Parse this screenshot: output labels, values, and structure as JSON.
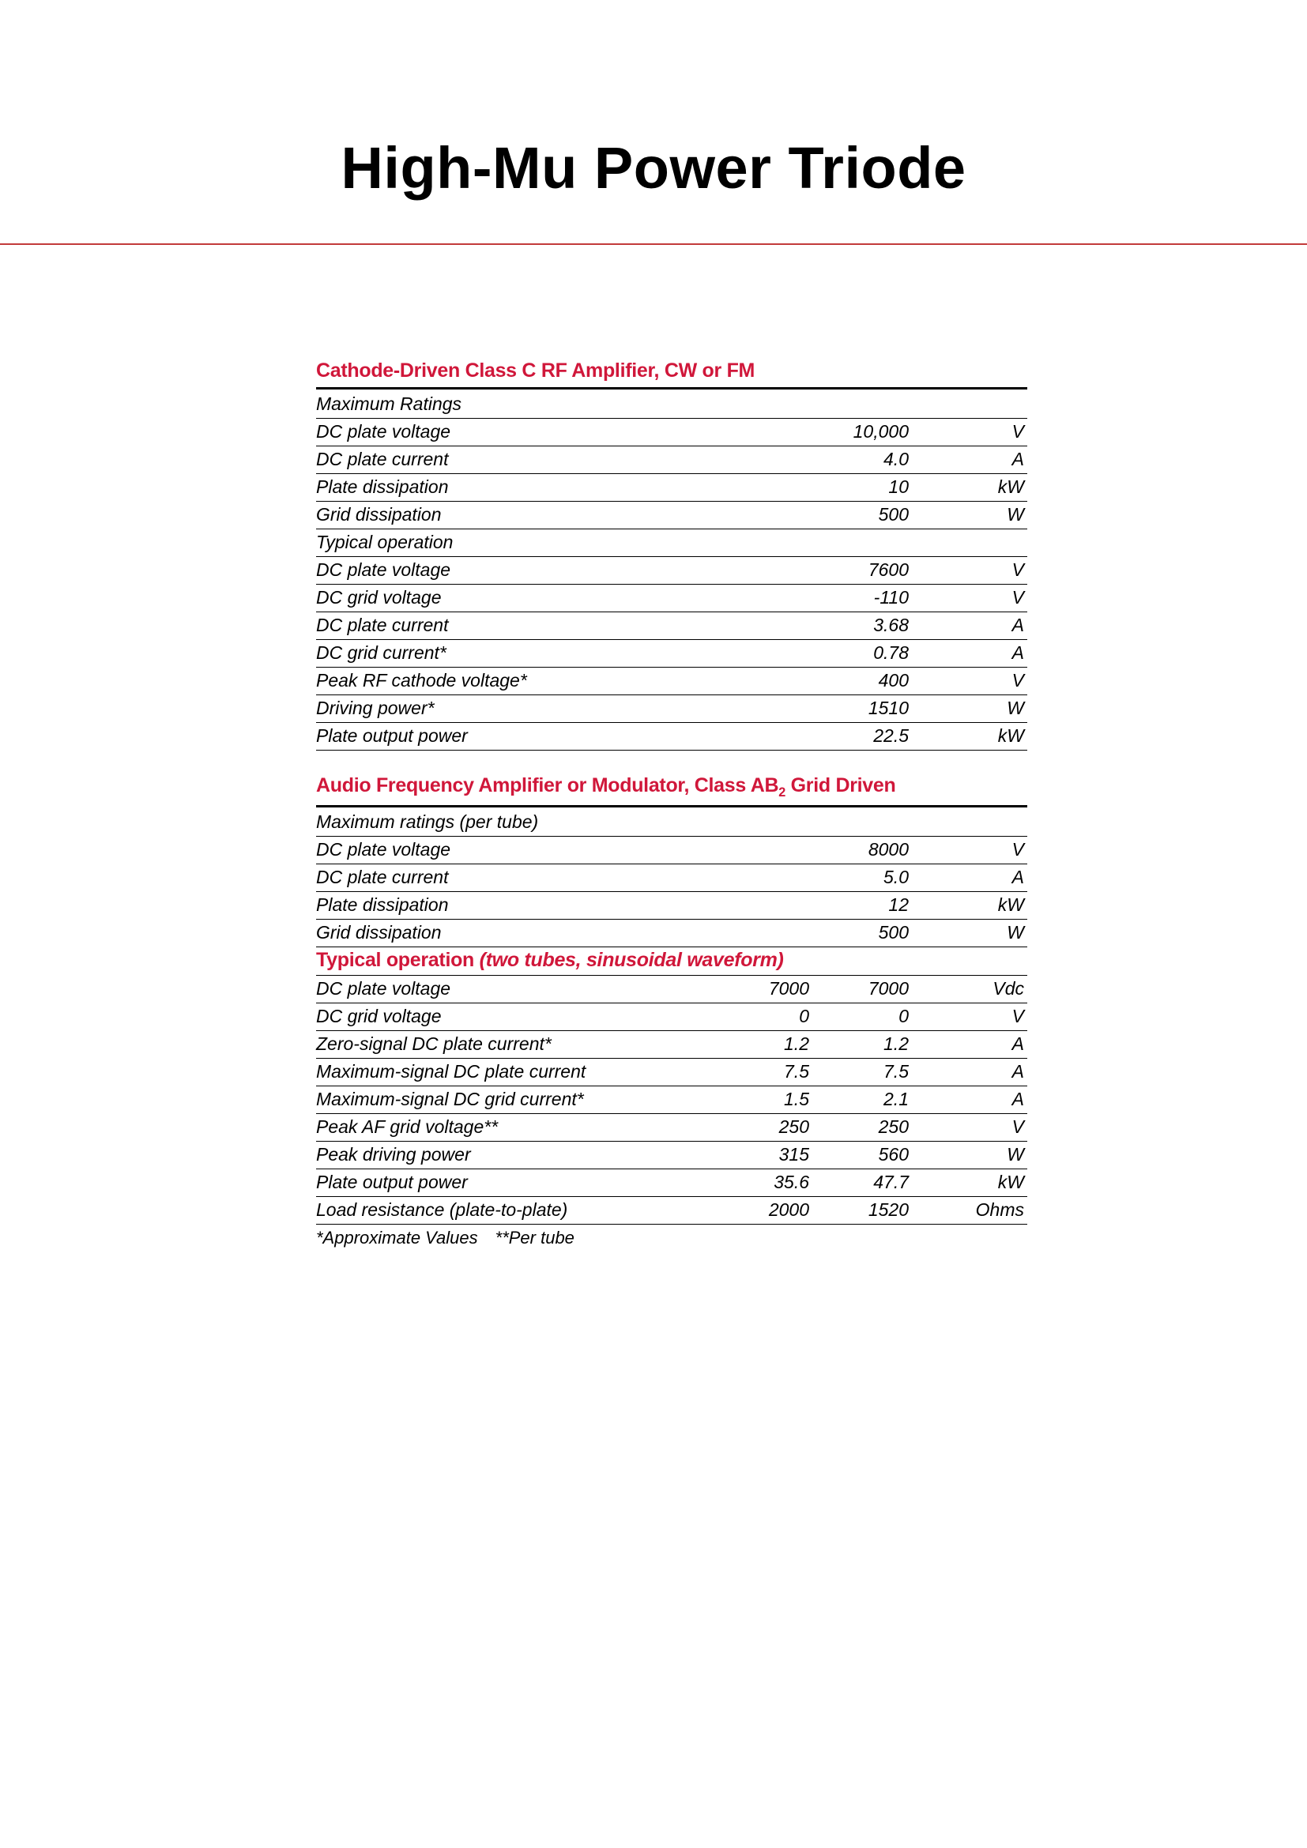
{
  "page": {
    "title": "High-Mu Power Triode",
    "accent_color": "#d0173a",
    "rule_color": "#c23a3a",
    "text_color": "#000000",
    "background_color": "#ffffff"
  },
  "section1": {
    "heading": "Cathode-Driven Class C RF Amplifier, CW or FM",
    "groups": [
      {
        "header": "Maximum Ratings",
        "rows": [
          {
            "label": "DC plate voltage",
            "value": "10,000",
            "unit": "V"
          },
          {
            "label": "DC plate current",
            "value": "4.0",
            "unit": "A"
          },
          {
            "label": "Plate dissipation",
            "value": "10",
            "unit": "kW"
          },
          {
            "label": "Grid dissipation",
            "value": "500",
            "unit": "W"
          }
        ]
      },
      {
        "header": "Typical operation",
        "rows": [
          {
            "label": "DC plate voltage",
            "value": "7600",
            "unit": "V"
          },
          {
            "label": "DC grid voltage",
            "value": "-110",
            "unit": "V"
          },
          {
            "label": "DC plate current",
            "value": "3.68",
            "unit": "A"
          },
          {
            "label": "DC grid current*",
            "value": "0.78",
            "unit": "A"
          },
          {
            "label": "Peak RF cathode voltage*",
            "value": "400",
            "unit": "V"
          },
          {
            "label": "Driving power*",
            "value": "1510",
            "unit": "W"
          },
          {
            "label": "Plate output power",
            "value": "22.5",
            "unit": "kW"
          }
        ]
      }
    ]
  },
  "section2": {
    "heading_main": "Audio Frequency Amplifier or Modulator, Class AB",
    "heading_sub": "2",
    "heading_tail": " Grid Driven",
    "max_ratings_header": "Maximum ratings (per tube)",
    "max_ratings_rows": [
      {
        "label": "DC plate voltage",
        "value": "8000",
        "unit": "V"
      },
      {
        "label": "DC plate current",
        "value": "5.0",
        "unit": "A"
      },
      {
        "label": "Plate dissipation",
        "value": "12",
        "unit": "kW"
      },
      {
        "label": "Grid dissipation",
        "value": "500",
        "unit": "W"
      }
    ],
    "typical_heading": "Typical operation",
    "typical_paren": " (two tubes, sinusoidal waveform)",
    "typical_rows": [
      {
        "label": "DC plate voltage",
        "v1": "7000",
        "v2": "7000",
        "unit": "Vdc"
      },
      {
        "label": "DC grid voltage",
        "v1": "0",
        "v2": "0",
        "unit": "V"
      },
      {
        "label": "Zero-signal DC plate current*",
        "v1": "1.2",
        "v2": "1.2",
        "unit": "A"
      },
      {
        "label": "Maximum-signal DC plate current",
        "v1": "7.5",
        "v2": "7.5",
        "unit": "A"
      },
      {
        "label": "Maximum-signal DC grid current*",
        "v1": "1.5",
        "v2": "2.1",
        "unit": "A"
      },
      {
        "label": "Peak AF grid voltage**",
        "v1": "250",
        "v2": "250",
        "unit": "V"
      },
      {
        "label": "Peak driving power",
        "v1": "315",
        "v2": "560",
        "unit": "W"
      },
      {
        "label": "Plate output power",
        "v1": "35.6",
        "v2": "47.7",
        "unit": "kW"
      },
      {
        "label": "Load resistance (plate-to-plate)",
        "v1": "2000",
        "v2": "1520",
        "unit": "Ohms"
      }
    ],
    "footnote": "*Approximate Values **Per tube"
  }
}
